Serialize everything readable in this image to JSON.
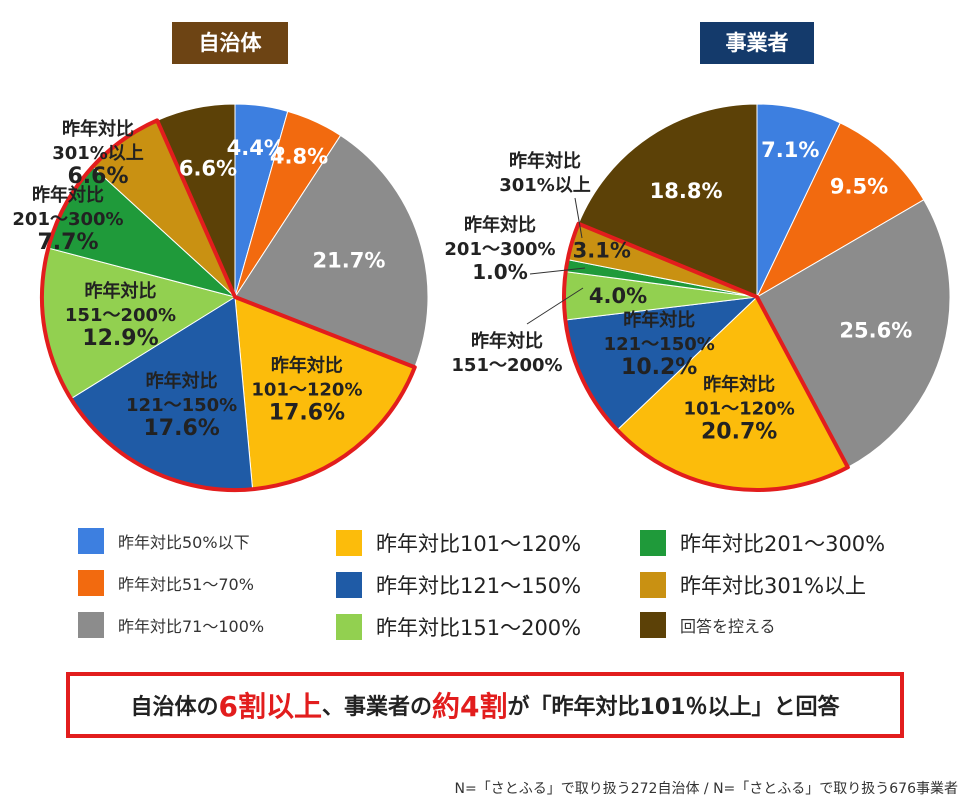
{
  "colors": {
    "cat_50_below": "#3d7fe0",
    "cat_51_70": "#f26a0f",
    "cat_71_100": "#8c8c8c",
    "cat_101_120": "#fcbc0b",
    "cat_121_150": "#1f5ba6",
    "cat_151_200": "#92d050",
    "cat_201_300": "#1f9a3a",
    "cat_301_up": "#c99112",
    "cat_no_answer": "#5c4107",
    "highlight_outline": "#e21d1d",
    "tag_municipality": "#6d4414",
    "tag_business": "#143a6b"
  },
  "legend": [
    {
      "label": "昨年対比50%以下",
      "color_key": "cat_50_below",
      "style": "small"
    },
    {
      "label": "昨年対比51〜70%",
      "color_key": "cat_51_70",
      "style": "small"
    },
    {
      "label": "昨年対比71〜100%",
      "color_key": "cat_71_100",
      "style": "small"
    },
    {
      "label": "昨年対比101〜120%",
      "color_key": "cat_101_120",
      "style": "big"
    },
    {
      "label": "昨年対比121〜150%",
      "color_key": "cat_121_150",
      "style": "big"
    },
    {
      "label": "昨年対比151〜200%",
      "color_key": "cat_151_200",
      "style": "big"
    },
    {
      "label": "昨年対比201〜300%",
      "color_key": "cat_201_300",
      "style": "big"
    },
    {
      "label": "昨年対比301%以上",
      "color_key": "cat_301_up",
      "style": "big"
    },
    {
      "label": "回答を控える",
      "color_key": "cat_no_answer",
      "style": "small"
    }
  ],
  "summary": {
    "part1": "自治体の",
    "part2": "6割以上",
    "part3": "、事業者の",
    "part4": "約4割",
    "part5": "が「昨年対比101％以上」と回答"
  },
  "footnote": "N=「さとふる」で取り扱う272自治体 / N=「さとふる」で取り扱う676事業者",
  "chart_data": [
    {
      "type": "pie",
      "title": "自治体",
      "slices": [
        {
          "category": "昨年対比50%以下",
          "color_key": "cat_50_below",
          "value": 4.4,
          "label_lines": [
            "4.4%"
          ]
        },
        {
          "category": "昨年対比51〜70%",
          "color_key": "cat_51_70",
          "value": 4.8,
          "label_lines": [
            "4.8%"
          ]
        },
        {
          "category": "昨年対比71〜100%",
          "color_key": "cat_71_100",
          "value": 21.7,
          "label_lines": [
            "21.7%"
          ]
        },
        {
          "category": "昨年対比101〜120%",
          "color_key": "cat_101_120",
          "value": 17.6,
          "label_lines": [
            "昨年対比",
            "101〜120%",
            "17.6%"
          ]
        },
        {
          "category": "昨年対比121〜150%",
          "color_key": "cat_121_150",
          "value": 17.6,
          "label_lines": [
            "昨年対比",
            "121〜150%",
            "17.6%"
          ]
        },
        {
          "category": "昨年対比151〜200%",
          "color_key": "cat_151_200",
          "value": 12.9,
          "label_lines": [
            "昨年対比",
            "151〜200%",
            "12.9%"
          ]
        },
        {
          "category": "昨年対比201〜300%",
          "color_key": "cat_201_300",
          "value": 7.7,
          "label_lines": [
            "昨年対比",
            "201〜300%",
            "7.7%"
          ]
        },
        {
          "category": "昨年対比301%以上",
          "color_key": "cat_301_up",
          "value": 6.6,
          "label_lines": [
            "昨年対比",
            "301%以上",
            "6.6%"
          ]
        },
        {
          "category": "回答を控える",
          "color_key": "cat_no_answer",
          "value": 6.6,
          "label_lines": [
            "6.6%"
          ]
        }
      ]
    },
    {
      "type": "pie",
      "title": "事業者",
      "slices": [
        {
          "category": "昨年対比50%以下",
          "color_key": "cat_50_below",
          "value": 7.1,
          "label_lines": [
            "7.1%"
          ]
        },
        {
          "category": "昨年対比51〜70%",
          "color_key": "cat_51_70",
          "value": 9.5,
          "label_lines": [
            "9.5%"
          ]
        },
        {
          "category": "昨年対比71〜100%",
          "color_key": "cat_71_100",
          "value": 25.6,
          "label_lines": [
            "25.6%"
          ]
        },
        {
          "category": "昨年対比101〜120%",
          "color_key": "cat_101_120",
          "value": 20.7,
          "label_lines": [
            "昨年対比",
            "101〜120%",
            "20.7%"
          ]
        },
        {
          "category": "昨年対比121〜150%",
          "color_key": "cat_121_150",
          "value": 10.2,
          "label_lines": [
            "昨年対比",
            "121〜150%",
            "10.2%"
          ]
        },
        {
          "category": "昨年対比151〜200%",
          "color_key": "cat_151_200",
          "value": 4.0,
          "label_lines": [
            "4.0%"
          ]
        },
        {
          "category": "昨年対比201〜300%",
          "color_key": "cat_201_300",
          "value": 1.0,
          "label_lines": []
        },
        {
          "category": "昨年対比301%以上",
          "color_key": "cat_301_up",
          "value": 3.1,
          "label_lines": [
            "3.1%"
          ]
        },
        {
          "category": "回答を控える",
          "color_key": "cat_no_answer",
          "value": 18.8,
          "label_lines": [
            "18.8%"
          ]
        }
      ],
      "callouts": [
        {
          "category": "昨年対比301%以上",
          "lines": [
            "昨年対比",
            "301%以上"
          ]
        },
        {
          "category": "昨年対比201〜300%",
          "lines": [
            "昨年対比",
            "201〜300%",
            "1.0%"
          ]
        },
        {
          "category": "昨年対比151〜200%",
          "lines": [
            "昨年対比",
            "151〜200%"
          ]
        }
      ]
    }
  ]
}
